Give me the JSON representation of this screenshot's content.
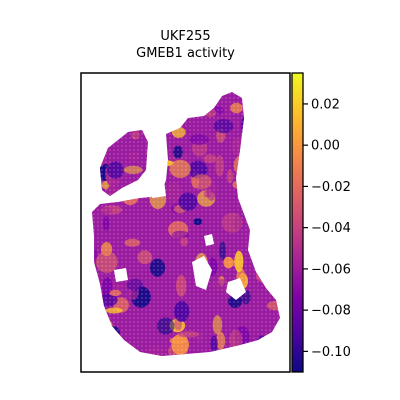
{
  "chart_data": {
    "type": "heatmap",
    "title_lines": [
      "UKF255",
      "GMEB1 activity"
    ],
    "colormap": "plasma",
    "colorbar": {
      "vmin": -0.11,
      "vmax": 0.035,
      "ticks": [
        0.02,
        0.0,
        -0.02,
        -0.04,
        -0.06,
        -0.08,
        -0.1
      ],
      "tick_labels": [
        "0.02",
        "0.00",
        "−0.02",
        "−0.04",
        "−0.06",
        "−0.08",
        "−0.10"
      ]
    },
    "axes": {
      "xticks": [],
      "yticks": [],
      "grid": false
    },
    "legend": "none"
  }
}
